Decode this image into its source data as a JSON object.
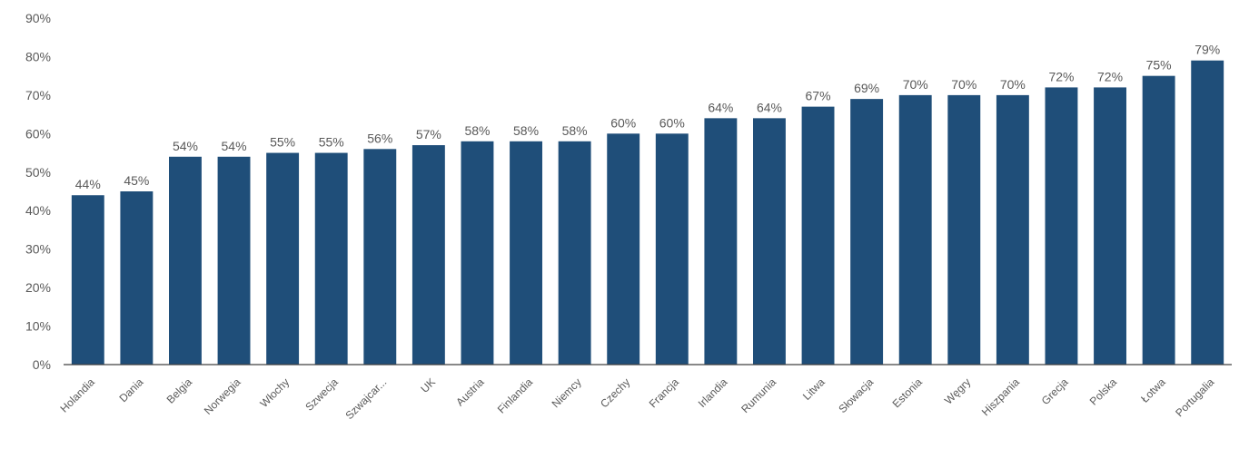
{
  "chart_data": {
    "type": "bar",
    "title": "",
    "xlabel": "",
    "ylabel": "",
    "ylim": [
      0,
      90
    ],
    "ytick_step": 10,
    "ytick_suffix": "%",
    "grid": false,
    "legend": "none",
    "bar_color": "#1F4E79",
    "categories": [
      "Holandia",
      "Dania",
      "Belgia",
      "Norwegia",
      "Włochy",
      "Szwecja",
      "Szwajcar...",
      "UK",
      "Austria",
      "Finlandia",
      "Niemcy",
      "Czechy",
      "Francja",
      "Irlandia",
      "Rumunia",
      "Litwa",
      "Słowacja",
      "Estonia",
      "Węgry",
      "Hiszpania",
      "Grecja",
      "Polska",
      "Łotwa",
      "Portugalia"
    ],
    "values": [
      44,
      45,
      54,
      54,
      55,
      55,
      56,
      57,
      58,
      58,
      58,
      60,
      60,
      64,
      64,
      67,
      69,
      70,
      70,
      70,
      72,
      72,
      75,
      79
    ],
    "value_suffix": "%"
  }
}
